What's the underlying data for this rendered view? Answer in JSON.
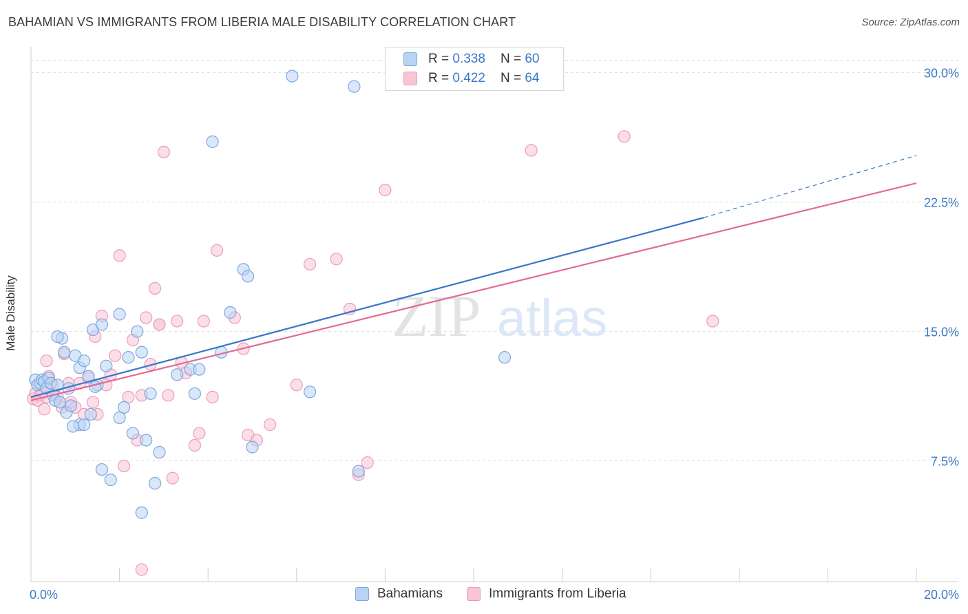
{
  "header": {
    "title": "BAHAMIAN VS IMMIGRANTS FROM LIBERIA MALE DISABILITY CORRELATION CHART",
    "source": "Source: ZipAtlas.com"
  },
  "watermark": {
    "zip": "ZIP",
    "atlas": "atlas"
  },
  "legend": {
    "rows": [
      {
        "r_label": "R =",
        "r_value": "0.338",
        "n_label": "N =",
        "n_value": "60"
      },
      {
        "r_label": "R =",
        "r_value": "0.422",
        "n_label": "N =",
        "n_value": "64"
      }
    ]
  },
  "colors": {
    "blue": "#3b78c9",
    "blue_fill": "#b9d3f3",
    "blue_stroke": "#7aa7e0",
    "pink": "#e26b96",
    "pink_fill": "#f8c5d6",
    "pink_stroke": "#ee9ab8",
    "grid": "#dddddd",
    "tick_label": "#3b78c9"
  },
  "chart_data": {
    "type": "scatter",
    "title": "BAHAMIAN VS IMMIGRANTS FROM LIBERIA MALE DISABILITY CORRELATION CHART",
    "xlabel": "",
    "ylabel": "Male Disability",
    "xlim": [
      0,
      20
    ],
    "ylim": [
      0.5,
      31.5
    ],
    "x_tick_labels": [
      "0.0%",
      "20.0%"
    ],
    "y_ticks": [
      7.5,
      15.0,
      22.5,
      30.0
    ],
    "y_tick_labels": [
      "7.5%",
      "15.0%",
      "22.5%",
      "30.0%"
    ],
    "grid": true,
    "legend_position": "bottom",
    "series": [
      {
        "name": "Bahamians",
        "points": [
          [
            0.1,
            12.2
          ],
          [
            0.15,
            11.9
          ],
          [
            0.2,
            12.0
          ],
          [
            0.25,
            12.2
          ],
          [
            0.3,
            12.1
          ],
          [
            0.35,
            11.7
          ],
          [
            0.4,
            12.3
          ],
          [
            0.45,
            12.0
          ],
          [
            0.5,
            11.3
          ],
          [
            0.55,
            11.0
          ],
          [
            0.6,
            11.9
          ],
          [
            0.65,
            10.9
          ],
          [
            0.7,
            14.6
          ],
          [
            0.75,
            13.8
          ],
          [
            0.8,
            10.3
          ],
          [
            0.85,
            11.7
          ],
          [
            0.9,
            10.7
          ],
          [
            1.0,
            13.6
          ],
          [
            1.1,
            12.9
          ],
          [
            1.2,
            13.3
          ],
          [
            1.3,
            12.4
          ],
          [
            1.35,
            10.2
          ],
          [
            1.4,
            15.1
          ],
          [
            1.5,
            11.9
          ],
          [
            1.6,
            15.4
          ],
          [
            1.7,
            13.0
          ],
          [
            2.0,
            10.0
          ],
          [
            2.0,
            16.0
          ],
          [
            2.1,
            10.6
          ],
          [
            2.2,
            13.5
          ],
          [
            2.3,
            9.1
          ],
          [
            2.4,
            15.0
          ],
          [
            2.5,
            13.8
          ],
          [
            2.6,
            8.7
          ],
          [
            2.7,
            11.4
          ],
          [
            2.8,
            6.2
          ],
          [
            2.9,
            8.0
          ],
          [
            3.3,
            12.5
          ],
          [
            3.6,
            12.8
          ],
          [
            3.8,
            12.8
          ],
          [
            3.7,
            11.4
          ],
          [
            4.1,
            26.0
          ],
          [
            4.3,
            13.8
          ],
          [
            4.5,
            16.1
          ],
          [
            4.8,
            18.6
          ],
          [
            4.9,
            18.2
          ],
          [
            5.0,
            8.3
          ],
          [
            5.9,
            29.8
          ],
          [
            6.3,
            11.5
          ],
          [
            7.3,
            29.2
          ],
          [
            7.4,
            6.9
          ],
          [
            10.7,
            13.5
          ],
          [
            0.6,
            14.7
          ],
          [
            1.1,
            9.6
          ],
          [
            1.2,
            9.6
          ],
          [
            1.6,
            7.0
          ],
          [
            1.8,
            6.4
          ],
          [
            2.5,
            4.5
          ],
          [
            0.95,
            9.5
          ],
          [
            1.45,
            11.8
          ]
        ]
      },
      {
        "name": "Immigrants from Liberia",
        "points": [
          [
            0.05,
            11.1
          ],
          [
            0.1,
            11.4
          ],
          [
            0.15,
            11.0
          ],
          [
            0.2,
            11.3
          ],
          [
            0.25,
            11.5
          ],
          [
            0.3,
            10.5
          ],
          [
            0.35,
            13.3
          ],
          [
            0.4,
            12.4
          ],
          [
            0.5,
            11.9
          ],
          [
            0.6,
            11.2
          ],
          [
            0.7,
            10.6
          ],
          [
            0.75,
            13.7
          ],
          [
            0.85,
            12.0
          ],
          [
            0.9,
            10.9
          ],
          [
            1.0,
            10.6
          ],
          [
            1.1,
            12.0
          ],
          [
            1.2,
            10.2
          ],
          [
            1.3,
            12.3
          ],
          [
            1.4,
            10.9
          ],
          [
            1.5,
            10.2
          ],
          [
            1.6,
            15.9
          ],
          [
            1.7,
            11.9
          ],
          [
            1.8,
            12.5
          ],
          [
            1.9,
            13.6
          ],
          [
            2.0,
            19.4
          ],
          [
            2.1,
            7.2
          ],
          [
            2.2,
            11.2
          ],
          [
            2.3,
            14.5
          ],
          [
            2.4,
            8.7
          ],
          [
            2.5,
            11.3
          ],
          [
            2.6,
            15.8
          ],
          [
            2.7,
            13.1
          ],
          [
            2.8,
            17.5
          ],
          [
            2.9,
            15.4
          ],
          [
            3.0,
            25.4
          ],
          [
            3.1,
            11.3
          ],
          [
            3.2,
            6.5
          ],
          [
            3.3,
            15.6
          ],
          [
            3.4,
            13.2
          ],
          [
            3.5,
            12.6
          ],
          [
            3.7,
            8.4
          ],
          [
            3.8,
            9.1
          ],
          [
            3.9,
            15.6
          ],
          [
            4.1,
            11.2
          ],
          [
            4.2,
            19.7
          ],
          [
            4.6,
            15.8
          ],
          [
            4.8,
            14.0
          ],
          [
            4.9,
            9.0
          ],
          [
            5.1,
            8.7
          ],
          [
            5.4,
            9.6
          ],
          [
            6.0,
            11.9
          ],
          [
            6.3,
            18.9
          ],
          [
            6.9,
            19.2
          ],
          [
            7.2,
            16.3
          ],
          [
            7.4,
            6.7
          ],
          [
            7.6,
            7.4
          ],
          [
            8.0,
            23.2
          ],
          [
            11.3,
            25.5
          ],
          [
            13.4,
            26.3
          ],
          [
            15.4,
            15.6
          ],
          [
            2.5,
            1.2
          ],
          [
            0.35,
            11.2
          ],
          [
            1.45,
            14.7
          ],
          [
            2.9,
            15.4
          ]
        ]
      }
    ],
    "trendlines": [
      {
        "series": "Bahamians",
        "x0": 0.0,
        "y0": 11.2,
        "x1": 15.2,
        "y1": 21.6,
        "dashed_to_x": 20.0,
        "dashed_to_y": 25.2
      },
      {
        "series": "Immigrants from Liberia",
        "x0": 0.0,
        "y0": 11.0,
        "x1": 20.0,
        "y1": 23.6
      }
    ]
  }
}
